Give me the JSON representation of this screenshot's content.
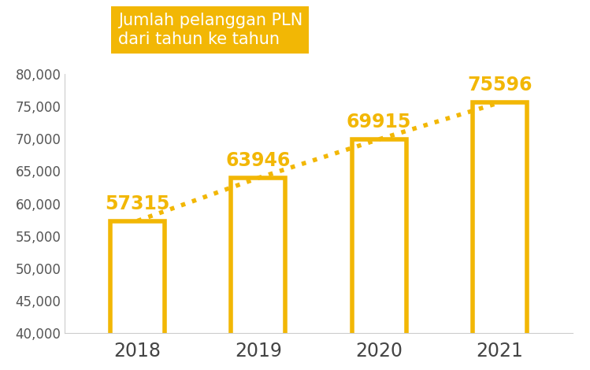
{
  "chart_data": {
    "type": "bar",
    "title": "Jumlah pelanggan PLN\ndari tahun ke tahun",
    "categories": [
      "2018",
      "2019",
      "2020",
      "2021"
    ],
    "values": [
      57315,
      63946,
      69915,
      75596
    ],
    "color": "#f2b705",
    "line_style": "dotted",
    "data_labels": true,
    "ylim": [
      40000,
      80000
    ],
    "yticks": [
      {
        "value": 40000,
        "label": "40,000"
      },
      {
        "value": 45000,
        "label": "45,000"
      },
      {
        "value": 50000,
        "label": "50,000"
      },
      {
        "value": 55000,
        "label": "55,000"
      },
      {
        "value": 60000,
        "label": "60,000"
      },
      {
        "value": 65000,
        "label": "65,000"
      },
      {
        "value": 70000,
        "label": "70,000"
      },
      {
        "value": 75000,
        "label": "75,000"
      },
      {
        "value": 80000,
        "label": "80,000"
      }
    ],
    "grid": false
  }
}
